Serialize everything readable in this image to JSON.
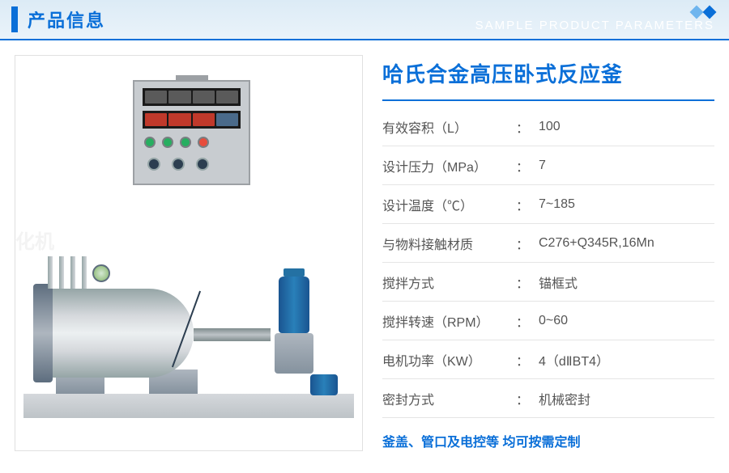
{
  "header": {
    "title": "产品信息",
    "subtitle": "SAMPLE PRODUCT PARAMETERS"
  },
  "product": {
    "title": "哈氏合金高压卧式反应釜",
    "watermark": "化机"
  },
  "specs": [
    {
      "label": "有效容积（L）",
      "colon": "：",
      "value": "100"
    },
    {
      "label": "设计压力（MPa）",
      "colon": "：",
      "value": "7"
    },
    {
      "label": "设计温度（℃）",
      "colon": "：",
      "value": "7~185"
    },
    {
      "label": "与物料接触材质",
      "colon": "：",
      "value": "C276+Q345R,16Mn"
    },
    {
      "label": "搅拌方式",
      "colon": "：",
      "value": "锚框式"
    },
    {
      "label": "搅拌转速（RPM）",
      "colon": "：",
      "value": "0~60"
    },
    {
      "label": "电机功率（KW）",
      "colon": "：",
      "value": "4（dⅡBT4）"
    },
    {
      "label": "密封方式",
      "colon": "：",
      "value": "机械密封"
    }
  ],
  "custom_note": "釜盖、管口及电控等 均可按需定制",
  "colors": {
    "primary": "#0a6fd8",
    "header_bg_top": "#dcebf6",
    "header_bg_bottom": "#eaf3fa",
    "text": "#555555",
    "border": "#e5e5e5"
  }
}
